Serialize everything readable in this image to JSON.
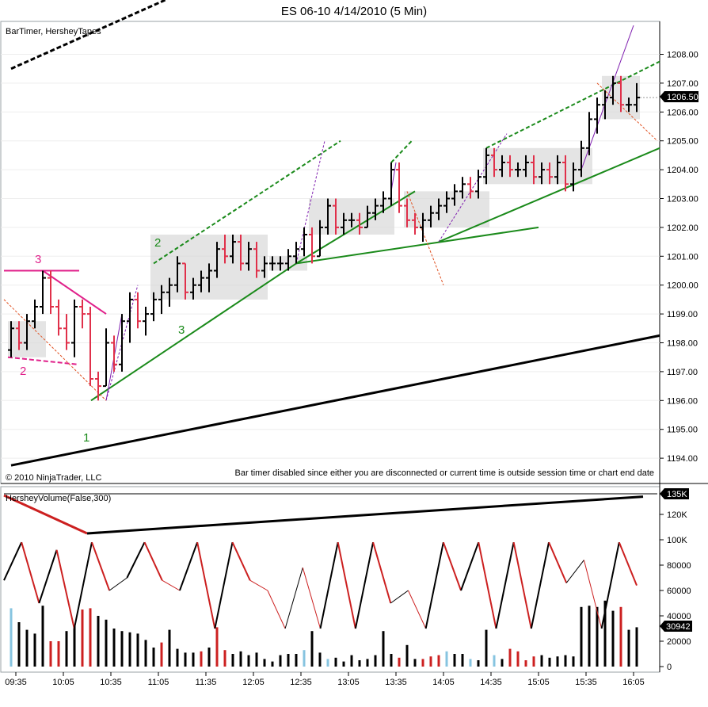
{
  "window_title": "ES 06-10  4/14/2010 (5 Min)",
  "price_panel": {
    "indicator_label": "BarTimer, HersheyTapes",
    "copyright": "© 2010 NinjaTrader, LLC",
    "message": "Bar timer disabled since either you are disconnected or current time is outside session time or chart end date",
    "last_price_label": "1206.50",
    "y_ticks": [
      "1208.00",
      "1207.00",
      "1206.00",
      "1205.00",
      "1204.00",
      "1203.00",
      "1202.00",
      "1201.00",
      "1200.00",
      "1199.00",
      "1198.00",
      "1197.00",
      "1196.00",
      "1195.00",
      "1194.00"
    ],
    "annotations_pink": [
      "3",
      "2"
    ],
    "annotations_green": [
      "2",
      "3",
      "1"
    ]
  },
  "volume_panel": {
    "indicator_label": "HersheyVolume(False,300)",
    "y_ticks": [
      "120K",
      "100K",
      "80000",
      "60000",
      "40000",
      "20000",
      "0"
    ],
    "top_flag": "135K",
    "last_volume_label": "30942"
  },
  "x_ticks": [
    "09:35",
    "10:05",
    "10:35",
    "11:05",
    "11:35",
    "12:05",
    "12:35",
    "13:05",
    "13:35",
    "14:05",
    "14:35",
    "15:05",
    "15:35",
    "16:05"
  ],
  "colors": {
    "up": "#000000",
    "down": "#e0304a",
    "green": "#1a8a1a",
    "pink": "#e0208a",
    "purple": "#8020b0",
    "orange": "#e05020",
    "box": "#d8d8d8",
    "vol_blue": "#87c4e0",
    "vol_red": "#cc2020"
  },
  "chart_data": [
    {
      "type": "ohlc",
      "title": "ES 06-10  4/14/2010 (5 Min)",
      "x_unit": "time",
      "categories": [
        "09:35",
        "09:40",
        "09:45",
        "09:50",
        "09:55",
        "10:00",
        "10:05",
        "10:10",
        "10:15",
        "10:20",
        "10:25",
        "10:30",
        "10:35",
        "10:40",
        "10:45",
        "10:50",
        "10:55",
        "11:00",
        "11:05",
        "11:10",
        "11:15",
        "11:20",
        "11:25",
        "11:30",
        "11:35",
        "11:40",
        "11:45",
        "11:50",
        "11:55",
        "12:00",
        "12:05",
        "12:10",
        "12:15",
        "12:20",
        "12:25",
        "12:30",
        "12:35",
        "12:40",
        "12:45",
        "12:50",
        "12:55",
        "13:00",
        "13:05",
        "13:10",
        "13:15",
        "13:20",
        "13:25",
        "13:30",
        "13:35",
        "13:40",
        "13:45",
        "13:50",
        "13:55",
        "14:00",
        "14:05",
        "14:10",
        "14:15",
        "14:20",
        "14:25",
        "14:30",
        "14:35",
        "14:40",
        "14:45",
        "14:50",
        "14:55",
        "15:00",
        "15:05",
        "15:10",
        "15:15",
        "15:20",
        "15:25",
        "15:30",
        "15:35",
        "15:40",
        "15:45",
        "15:50",
        "15:55",
        "16:00",
        "16:05",
        "16:10"
      ],
      "ohlc": [
        [
          1197.75,
          1198.75,
          1197.5,
          1198.5
        ],
        [
          1198.5,
          1198.75,
          1197.75,
          1198.0
        ],
        [
          1198.0,
          1199.0,
          1197.75,
          1198.75
        ],
        [
          1198.75,
          1199.5,
          1198.5,
          1199.25
        ],
        [
          1199.25,
          1200.5,
          1199.0,
          1200.25
        ],
        [
          1200.25,
          1200.5,
          1199.0,
          1199.25
        ],
        [
          1199.25,
          1199.5,
          1198.25,
          1198.5
        ],
        [
          1198.5,
          1199.0,
          1197.75,
          1198.0
        ],
        [
          1198.0,
          1199.5,
          1197.5,
          1199.25
        ],
        [
          1199.25,
          1199.5,
          1198.5,
          1199.0
        ],
        [
          1199.0,
          1199.25,
          1196.5,
          1196.75
        ],
        [
          1196.75,
          1197.0,
          1196.0,
          1196.5
        ],
        [
          1196.5,
          1198.5,
          1196.5,
          1198.0
        ],
        [
          1198.0,
          1198.25,
          1197.0,
          1197.25
        ],
        [
          1197.25,
          1199.0,
          1197.0,
          1198.75
        ],
        [
          1198.75,
          1199.75,
          1198.0,
          1199.5
        ],
        [
          1199.5,
          1199.75,
          1198.5,
          1198.75
        ],
        [
          1198.75,
          1199.25,
          1198.25,
          1199.0
        ],
        [
          1199.0,
          1199.75,
          1198.75,
          1199.5
        ],
        [
          1199.5,
          1200.0,
          1199.0,
          1199.75
        ],
        [
          1199.75,
          1200.25,
          1199.25,
          1200.0
        ],
        [
          1200.0,
          1201.0,
          1199.75,
          1200.75
        ],
        [
          1200.75,
          1200.75,
          1199.5,
          1199.75
        ],
        [
          1199.75,
          1200.25,
          1199.5,
          1200.0
        ],
        [
          1200.0,
          1200.5,
          1199.75,
          1200.25
        ],
        [
          1200.25,
          1200.75,
          1199.75,
          1200.5
        ],
        [
          1200.5,
          1201.5,
          1200.25,
          1201.25
        ],
        [
          1201.25,
          1201.75,
          1200.75,
          1201.0
        ],
        [
          1201.0,
          1201.75,
          1200.75,
          1201.5
        ],
        [
          1201.5,
          1201.75,
          1200.5,
          1200.75
        ],
        [
          1200.75,
          1201.5,
          1200.5,
          1201.25
        ],
        [
          1201.25,
          1201.5,
          1200.25,
          1200.5
        ],
        [
          1200.5,
          1201.0,
          1200.25,
          1200.75
        ],
        [
          1200.75,
          1201.0,
          1200.5,
          1200.75
        ],
        [
          1200.75,
          1201.0,
          1200.5,
          1200.75
        ],
        [
          1200.75,
          1201.25,
          1200.5,
          1201.0
        ],
        [
          1201.0,
          1201.5,
          1200.75,
          1201.25
        ],
        [
          1201.25,
          1202.0,
          1201.0,
          1201.75
        ],
        [
          1201.75,
          1202.0,
          1200.75,
          1201.0
        ],
        [
          1201.0,
          1202.25,
          1201.0,
          1202.0
        ],
        [
          1202.0,
          1203.0,
          1201.75,
          1202.75
        ],
        [
          1202.75,
          1203.0,
          1201.75,
          1202.0
        ],
        [
          1202.0,
          1202.5,
          1201.75,
          1202.25
        ],
        [
          1202.25,
          1202.5,
          1202.0,
          1202.25
        ],
        [
          1202.25,
          1202.5,
          1201.75,
          1202.0
        ],
        [
          1202.0,
          1202.75,
          1202.0,
          1202.5
        ],
        [
          1202.5,
          1203.0,
          1202.25,
          1202.75
        ],
        [
          1202.75,
          1203.25,
          1202.5,
          1203.0
        ],
        [
          1203.0,
          1204.25,
          1202.75,
          1204.0
        ],
        [
          1204.0,
          1204.25,
          1202.5,
          1202.75
        ],
        [
          1202.75,
          1203.0,
          1202.0,
          1202.25
        ],
        [
          1202.25,
          1202.5,
          1201.75,
          1202.0
        ],
        [
          1202.0,
          1202.5,
          1201.5,
          1202.25
        ],
        [
          1202.25,
          1202.75,
          1202.0,
          1202.5
        ],
        [
          1202.5,
          1203.0,
          1202.25,
          1202.75
        ],
        [
          1202.75,
          1203.25,
          1202.5,
          1203.0
        ],
        [
          1203.0,
          1203.5,
          1202.75,
          1203.25
        ],
        [
          1203.25,
          1203.75,
          1203.0,
          1203.5
        ],
        [
          1203.5,
          1203.75,
          1203.0,
          1203.25
        ],
        [
          1203.25,
          1204.0,
          1203.0,
          1203.75
        ],
        [
          1203.75,
          1204.75,
          1203.5,
          1204.5
        ],
        [
          1204.5,
          1204.75,
          1203.75,
          1204.0
        ],
        [
          1204.0,
          1204.5,
          1203.75,
          1204.25
        ],
        [
          1204.25,
          1204.5,
          1203.75,
          1204.0
        ],
        [
          1204.0,
          1204.25,
          1203.75,
          1204.0
        ],
        [
          1204.0,
          1204.5,
          1203.75,
          1204.25
        ],
        [
          1204.25,
          1204.5,
          1203.5,
          1203.75
        ],
        [
          1203.75,
          1204.25,
          1203.5,
          1204.0
        ],
        [
          1204.0,
          1204.25,
          1203.5,
          1203.75
        ],
        [
          1203.75,
          1204.5,
          1203.5,
          1204.25
        ],
        [
          1204.25,
          1204.5,
          1203.25,
          1203.5
        ],
        [
          1203.5,
          1204.25,
          1203.25,
          1204.0
        ],
        [
          1204.0,
          1205.0,
          1203.75,
          1204.75
        ],
        [
          1204.75,
          1206.0,
          1204.5,
          1205.75
        ],
        [
          1205.75,
          1206.5,
          1205.25,
          1206.25
        ],
        [
          1206.25,
          1206.75,
          1205.75,
          1206.5
        ],
        [
          1206.5,
          1207.25,
          1206.25,
          1207.0
        ],
        [
          1207.0,
          1207.25,
          1206.0,
          1206.25
        ],
        [
          1206.25,
          1206.5,
          1206.0,
          1206.25
        ],
        [
          1206.25,
          1207.0,
          1206.0,
          1206.5
        ]
      ],
      "y_range": [
        1193.5,
        1208.75
      ],
      "last_price": 1206.5
    },
    {
      "type": "bar",
      "title": "HersheyVolume(False,300)",
      "categories": [
        "09:35",
        "09:40",
        "09:45",
        "09:50",
        "09:55",
        "10:00",
        "10:05",
        "10:10",
        "10:15",
        "10:20",
        "10:25",
        "10:30",
        "10:35",
        "10:40",
        "10:45",
        "10:50",
        "10:55",
        "11:00",
        "11:05",
        "11:10",
        "11:15",
        "11:20",
        "11:25",
        "11:30",
        "11:35",
        "11:40",
        "11:45",
        "11:50",
        "11:55",
        "12:00",
        "12:05",
        "12:10",
        "12:15",
        "12:20",
        "12:25",
        "12:30",
        "12:35",
        "12:40",
        "12:45",
        "12:50",
        "12:55",
        "13:00",
        "13:05",
        "13:10",
        "13:15",
        "13:20",
        "13:25",
        "13:30",
        "13:35",
        "13:40",
        "13:45",
        "13:50",
        "13:55",
        "14:00",
        "14:05",
        "14:10",
        "14:15",
        "14:20",
        "14:25",
        "14:30",
        "14:35",
        "14:40",
        "14:45",
        "14:50",
        "14:55",
        "15:00",
        "15:05",
        "15:10",
        "15:15",
        "15:20",
        "15:25",
        "15:30",
        "15:35",
        "15:40",
        "15:45",
        "15:50",
        "15:55",
        "16:00",
        "16:05",
        "16:10"
      ],
      "values": [
        46000,
        35000,
        29000,
        26000,
        48000,
        20000,
        20000,
        28000,
        32000,
        45000,
        46000,
        40000,
        37000,
        30000,
        28000,
        27000,
        26000,
        21000,
        15000,
        19000,
        29000,
        14000,
        11000,
        11000,
        12000,
        15000,
        31000,
        13000,
        10000,
        12000,
        9000,
        11000,
        6000,
        4000,
        9000,
        10000,
        10000,
        13000,
        28000,
        11000,
        6000,
        7000,
        4000,
        9000,
        5000,
        6000,
        9000,
        28000,
        10000,
        7000,
        17000,
        6000,
        6000,
        8000,
        9000,
        12000,
        10000,
        10000,
        6000,
        5000,
        29000,
        9000,
        6000,
        14000,
        12000,
        5000,
        8000,
        9000,
        7000,
        8000,
        9000,
        8000,
        47000,
        48000,
        47000,
        52000,
        44000,
        47000,
        29000,
        31000
      ],
      "colors": [
        "blue",
        "black",
        "black",
        "black",
        "black",
        "red",
        "red",
        "black",
        "black",
        "red",
        "red",
        "black",
        "black",
        "black",
        "black",
        "black",
        "black",
        "black",
        "black",
        "red",
        "black",
        "black",
        "black",
        "black",
        "red",
        "black",
        "red",
        "red",
        "black",
        "black",
        "black",
        "black",
        "black",
        "black",
        "black",
        "black",
        "black",
        "blue",
        "black",
        "black",
        "blue",
        "black",
        "black",
        "black",
        "black",
        "black",
        "black",
        "black",
        "black",
        "red",
        "black",
        "black",
        "red",
        "red",
        "red",
        "blue",
        "black",
        "black",
        "blue",
        "black",
        "black",
        "blue",
        "black",
        "red",
        "red",
        "red",
        "red",
        "black",
        "black",
        "black",
        "black",
        "black",
        "black",
        "black",
        "black",
        "black",
        "black",
        "red",
        "black",
        "black"
      ],
      "zigzag": [
        68000,
        98000,
        50000,
        92000,
        30000,
        98000,
        60000,
        70000,
        98000,
        68000,
        60000,
        98000,
        30000,
        98000,
        68000,
        60000,
        30000,
        78000,
        30000,
        98000,
        30000,
        98000,
        50000,
        60000,
        30000,
        98000,
        60000,
        98000,
        30000,
        98000,
        30000,
        98000,
        66000,
        84000,
        30000,
        98000,
        64000
      ],
      "y_range": [
        0,
        135000
      ],
      "last_value": 30942
    }
  ]
}
